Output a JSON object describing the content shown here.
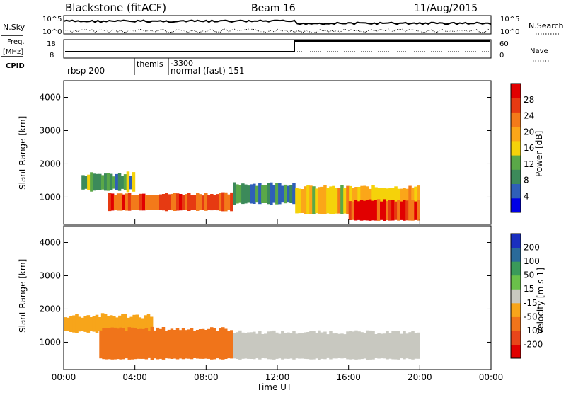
{
  "header": {
    "station": "Blackstone (fitACF)",
    "beam": "Beam 16",
    "date": "11/Aug/2015"
  },
  "side_labels": {
    "nsky": "N.Sky",
    "freq_line1": "Freq.",
    "freq_line2": "[MHz]",
    "cpid": "CPID",
    "nsearch": "N.Search",
    "nave": "Nave"
  },
  "scales": {
    "nsky_top": "10^5",
    "nsky_bottom": "10^0",
    "nsearch_top": "10^5",
    "nsearch_bottom": "10^0",
    "freq_top": "18",
    "freq_bottom": "8",
    "nave_top": "60",
    "nave_bottom": "0"
  },
  "cpid_labels": [
    {
      "text": "rbsp 200",
      "hour": 0.1
    },
    {
      "text": "themis",
      "hour": 4.05
    },
    {
      "text": "-3300",
      "hour": 6.0
    },
    {
      "text": "normal (fast) 151",
      "hour": 6.0
    }
  ],
  "colors": {
    "power": [
      "#0000e6",
      "#2f5fb8",
      "#3c8a5a",
      "#5aa848",
      "#f5d20a",
      "#fba619",
      "#f37a1a",
      "#e63a12",
      "#e10000"
    ],
    "velocity": [
      "#1a2fbf",
      "#2a6a9a",
      "#3a9a5a",
      "#6ac04a",
      "#c8c8c0",
      "#f7a51a",
      "#f0741a",
      "#e8461a",
      "#e00000"
    ]
  },
  "chart_data": [
    {
      "type": "heatmap",
      "name": "power",
      "ylabel": "Slant Range [km]",
      "xlim": [
        0,
        24
      ],
      "ylim": [
        180,
        4500
      ],
      "yticks": [
        "1000",
        "2000",
        "3000",
        "4000"
      ],
      "colorbar_label": "Power [dB]",
      "colorbar_ticks": [
        "4",
        "8",
        "12",
        "16",
        "20",
        "24",
        "28"
      ],
      "bands": [
        {
          "h0": 1.0,
          "h1": 4.0,
          "r0": 1200,
          "r1": 1700,
          "v": 12
        },
        {
          "h0": 2.5,
          "h1": 9.5,
          "r0": 600,
          "r1": 1100,
          "v": 25
        },
        {
          "h0": 9.5,
          "h1": 13.0,
          "r0": 800,
          "r1": 1400,
          "v": 10
        },
        {
          "h0": 13.0,
          "h1": 20.0,
          "r0": 500,
          "r1": 1300,
          "v": 18
        },
        {
          "h0": 16.0,
          "h1": 20.0,
          "r0": 300,
          "r1": 900,
          "v": 27
        }
      ]
    },
    {
      "type": "heatmap",
      "name": "velocity",
      "ylabel": "Slant Range [km]",
      "xlabel": "Time UT",
      "xlim": [
        0,
        24
      ],
      "ylim": [
        180,
        4500
      ],
      "xticks": [
        "00:00",
        "04:00",
        "08:00",
        "12:00",
        "16:00",
        "20:00",
        "00:00"
      ],
      "yticks": [
        "1000",
        "2000",
        "3000",
        "4000"
      ],
      "colorbar_label": "Velocity [m s-1]",
      "colorbar_ticks": [
        "200",
        "100",
        "50",
        "15",
        "-15",
        "-50",
        "-100",
        "-200"
      ],
      "bands": [
        {
          "h0": 0.0,
          "h1": 5.0,
          "r0": 1300,
          "r1": 1800,
          "v": -40
        },
        {
          "h0": 2.0,
          "h1": 9.5,
          "r0": 500,
          "r1": 1400,
          "v": -60
        },
        {
          "h0": 9.5,
          "h1": 20.0,
          "r0": 500,
          "r1": 1300,
          "v": 0
        }
      ]
    }
  ]
}
